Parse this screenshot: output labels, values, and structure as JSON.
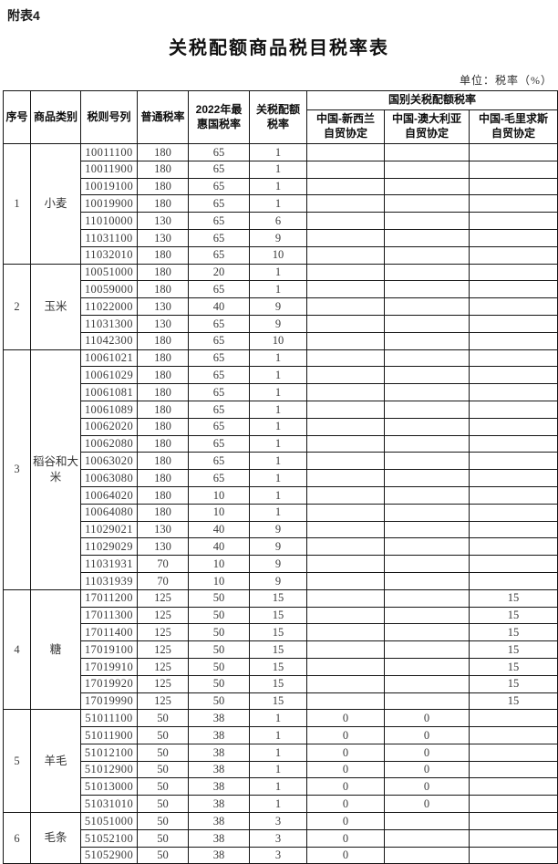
{
  "page": {
    "tag": "附表4",
    "title": "关税配额商品税目税率表",
    "unit": "单位：税率（%）"
  },
  "table": {
    "headers": {
      "seq": "序号",
      "category": "商品类别",
      "tariff_code": "税则号列",
      "general_rate": "普通税率",
      "mfn_rate": "2022年最\n惠国税率",
      "trq_rate": "关税配额\n税率",
      "country_group": "国别关税配额税率",
      "nz": "中国-新西兰\n自贸协定",
      "au": "中国-澳大利亚\n自贸协定",
      "mu": "中国-毛里求斯\n自贸协定"
    },
    "sections": [
      {
        "no": "1",
        "category": "小麦",
        "rows": [
          [
            "10011100",
            "180",
            "65",
            "1",
            "",
            "",
            ""
          ],
          [
            "10011900",
            "180",
            "65",
            "1",
            "",
            "",
            ""
          ],
          [
            "10019100",
            "180",
            "65",
            "1",
            "",
            "",
            ""
          ],
          [
            "10019900",
            "180",
            "65",
            "1",
            "",
            "",
            ""
          ],
          [
            "11010000",
            "130",
            "65",
            "6",
            "",
            "",
            ""
          ],
          [
            "11031100",
            "130",
            "65",
            "9",
            "",
            "",
            ""
          ],
          [
            "11032010",
            "180",
            "65",
            "10",
            "",
            "",
            ""
          ]
        ]
      },
      {
        "no": "2",
        "category": "玉米",
        "rows": [
          [
            "10051000",
            "180",
            "20",
            "1",
            "",
            "",
            ""
          ],
          [
            "10059000",
            "180",
            "65",
            "1",
            "",
            "",
            ""
          ],
          [
            "11022000",
            "130",
            "40",
            "9",
            "",
            "",
            ""
          ],
          [
            "11031300",
            "130",
            "65",
            "9",
            "",
            "",
            ""
          ],
          [
            "11042300",
            "180",
            "65",
            "10",
            "",
            "",
            ""
          ]
        ]
      },
      {
        "no": "3",
        "category": "稻谷和大米",
        "rows": [
          [
            "10061021",
            "180",
            "65",
            "1",
            "",
            "",
            ""
          ],
          [
            "10061029",
            "180",
            "65",
            "1",
            "",
            "",
            ""
          ],
          [
            "10061081",
            "180",
            "65",
            "1",
            "",
            "",
            ""
          ],
          [
            "10061089",
            "180",
            "65",
            "1",
            "",
            "",
            ""
          ],
          [
            "10062020",
            "180",
            "65",
            "1",
            "",
            "",
            ""
          ],
          [
            "10062080",
            "180",
            "65",
            "1",
            "",
            "",
            ""
          ],
          [
            "10063020",
            "180",
            "65",
            "1",
            "",
            "",
            ""
          ],
          [
            "10063080",
            "180",
            "65",
            "1",
            "",
            "",
            ""
          ],
          [
            "10064020",
            "180",
            "10",
            "1",
            "",
            "",
            ""
          ],
          [
            "10064080",
            "180",
            "10",
            "1",
            "",
            "",
            ""
          ],
          [
            "11029021",
            "130",
            "40",
            "9",
            "",
            "",
            ""
          ],
          [
            "11029029",
            "130",
            "40",
            "9",
            "",
            "",
            ""
          ],
          [
            "11031931",
            "70",
            "10",
            "9",
            "",
            "",
            ""
          ],
          [
            "11031939",
            "70",
            "10",
            "9",
            "",
            "",
            ""
          ]
        ]
      },
      {
        "no": "4",
        "category": "糖",
        "rows": [
          [
            "17011200",
            "125",
            "50",
            "15",
            "",
            "",
            "15"
          ],
          [
            "17011300",
            "125",
            "50",
            "15",
            "",
            "",
            "15"
          ],
          [
            "17011400",
            "125",
            "50",
            "15",
            "",
            "",
            "15"
          ],
          [
            "17019100",
            "125",
            "50",
            "15",
            "",
            "",
            "15"
          ],
          [
            "17019910",
            "125",
            "50",
            "15",
            "",
            "",
            "15"
          ],
          [
            "17019920",
            "125",
            "50",
            "15",
            "",
            "",
            "15"
          ],
          [
            "17019990",
            "125",
            "50",
            "15",
            "",
            "",
            "15"
          ]
        ]
      },
      {
        "no": "5",
        "category": "羊毛",
        "rows": [
          [
            "51011100",
            "50",
            "38",
            "1",
            "0",
            "0",
            ""
          ],
          [
            "51011900",
            "50",
            "38",
            "1",
            "0",
            "0",
            ""
          ],
          [
            "51012100",
            "50",
            "38",
            "1",
            "0",
            "0",
            ""
          ],
          [
            "51012900",
            "50",
            "38",
            "1",
            "0",
            "0",
            ""
          ],
          [
            "51013000",
            "50",
            "38",
            "1",
            "0",
            "0",
            ""
          ],
          [
            "51031010",
            "50",
            "38",
            "1",
            "0",
            "0",
            ""
          ]
        ]
      },
      {
        "no": "6",
        "category": "毛条",
        "rows": [
          [
            "51051000",
            "50",
            "38",
            "3",
            "0",
            "",
            ""
          ],
          [
            "51052100",
            "50",
            "38",
            "3",
            "0",
            "",
            ""
          ],
          [
            "51052900",
            "50",
            "38",
            "3",
            "0",
            "",
            ""
          ]
        ]
      }
    ]
  }
}
